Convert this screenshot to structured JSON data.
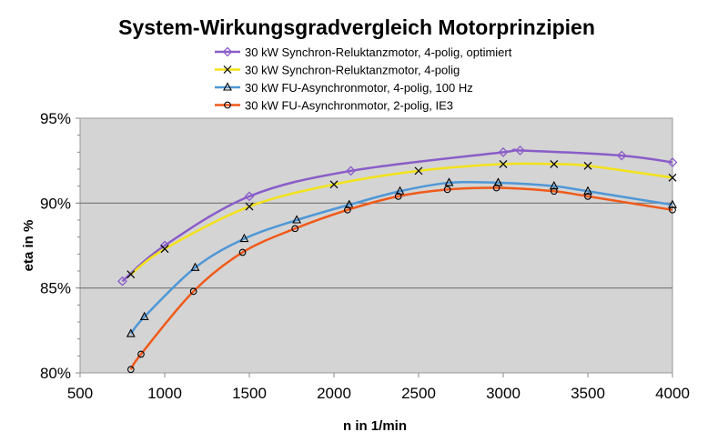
{
  "chart_data": {
    "type": "line",
    "title": "System-Wirkungsgradvergleich Motorprinzipien",
    "xlabel": "n in 1/min",
    "ylabel": "eta in %",
    "xlim": [
      500,
      4000
    ],
    "ylim": [
      80,
      95
    ],
    "xticks": [
      500,
      1000,
      1500,
      2000,
      2500,
      3000,
      3500,
      4000
    ],
    "yticks": [
      80,
      85,
      90,
      95
    ],
    "ytick_labels": [
      "80%",
      "85%",
      "90%",
      "95%"
    ],
    "grid": "horizontal major",
    "legend_position": "top",
    "series": [
      {
        "name": "30 kW Synchron-Reluktanzmotor, 4-polig, optimiert",
        "color": "#8a5cc8",
        "marker": "diamond",
        "points": [
          [
            750,
            85.4
          ],
          [
            1000,
            87.5
          ],
          [
            1500,
            90.4
          ],
          [
            2100,
            91.9
          ],
          [
            3000,
            93.0
          ],
          [
            3100,
            93.1
          ],
          [
            3700,
            92.8
          ],
          [
            4000,
            92.4
          ]
        ]
      },
      {
        "name": "30 kW Synchron-Reluktanzmotor, 4-polig",
        "color": "#f2e21a",
        "marker": "x",
        "points": [
          [
            800,
            85.8
          ],
          [
            1000,
            87.3
          ],
          [
            1500,
            89.8
          ],
          [
            2000,
            91.1
          ],
          [
            2500,
            91.9
          ],
          [
            3000,
            92.3
          ],
          [
            3300,
            92.3
          ],
          [
            3500,
            92.2
          ],
          [
            4000,
            91.5
          ]
        ]
      },
      {
        "name": "30 kW FU-Asynchronmotor, 4-polig, 100 Hz",
        "color": "#4f97d6",
        "marker": "triangle",
        "points": [
          [
            800,
            82.3
          ],
          [
            880,
            83.3
          ],
          [
            1180,
            86.2
          ],
          [
            1470,
            87.9
          ],
          [
            1780,
            89.0
          ],
          [
            2090,
            89.9
          ],
          [
            2390,
            90.7
          ],
          [
            2680,
            91.2
          ],
          [
            2970,
            91.2
          ],
          [
            3300,
            91.0
          ],
          [
            3500,
            90.7
          ],
          [
            4000,
            89.9
          ]
        ]
      },
      {
        "name": "30 kW FU-Asynchronmotor, 2-polig, IE3",
        "color": "#f05a1a",
        "marker": "circle",
        "points": [
          [
            800,
            80.2
          ],
          [
            860,
            81.1
          ],
          [
            1170,
            84.8
          ],
          [
            1460,
            87.1
          ],
          [
            1770,
            88.5
          ],
          [
            2080,
            89.6
          ],
          [
            2380,
            90.4
          ],
          [
            2670,
            90.8
          ],
          [
            2960,
            90.9
          ],
          [
            3300,
            90.7
          ],
          [
            3500,
            90.4
          ],
          [
            4000,
            89.6
          ]
        ]
      }
    ]
  }
}
